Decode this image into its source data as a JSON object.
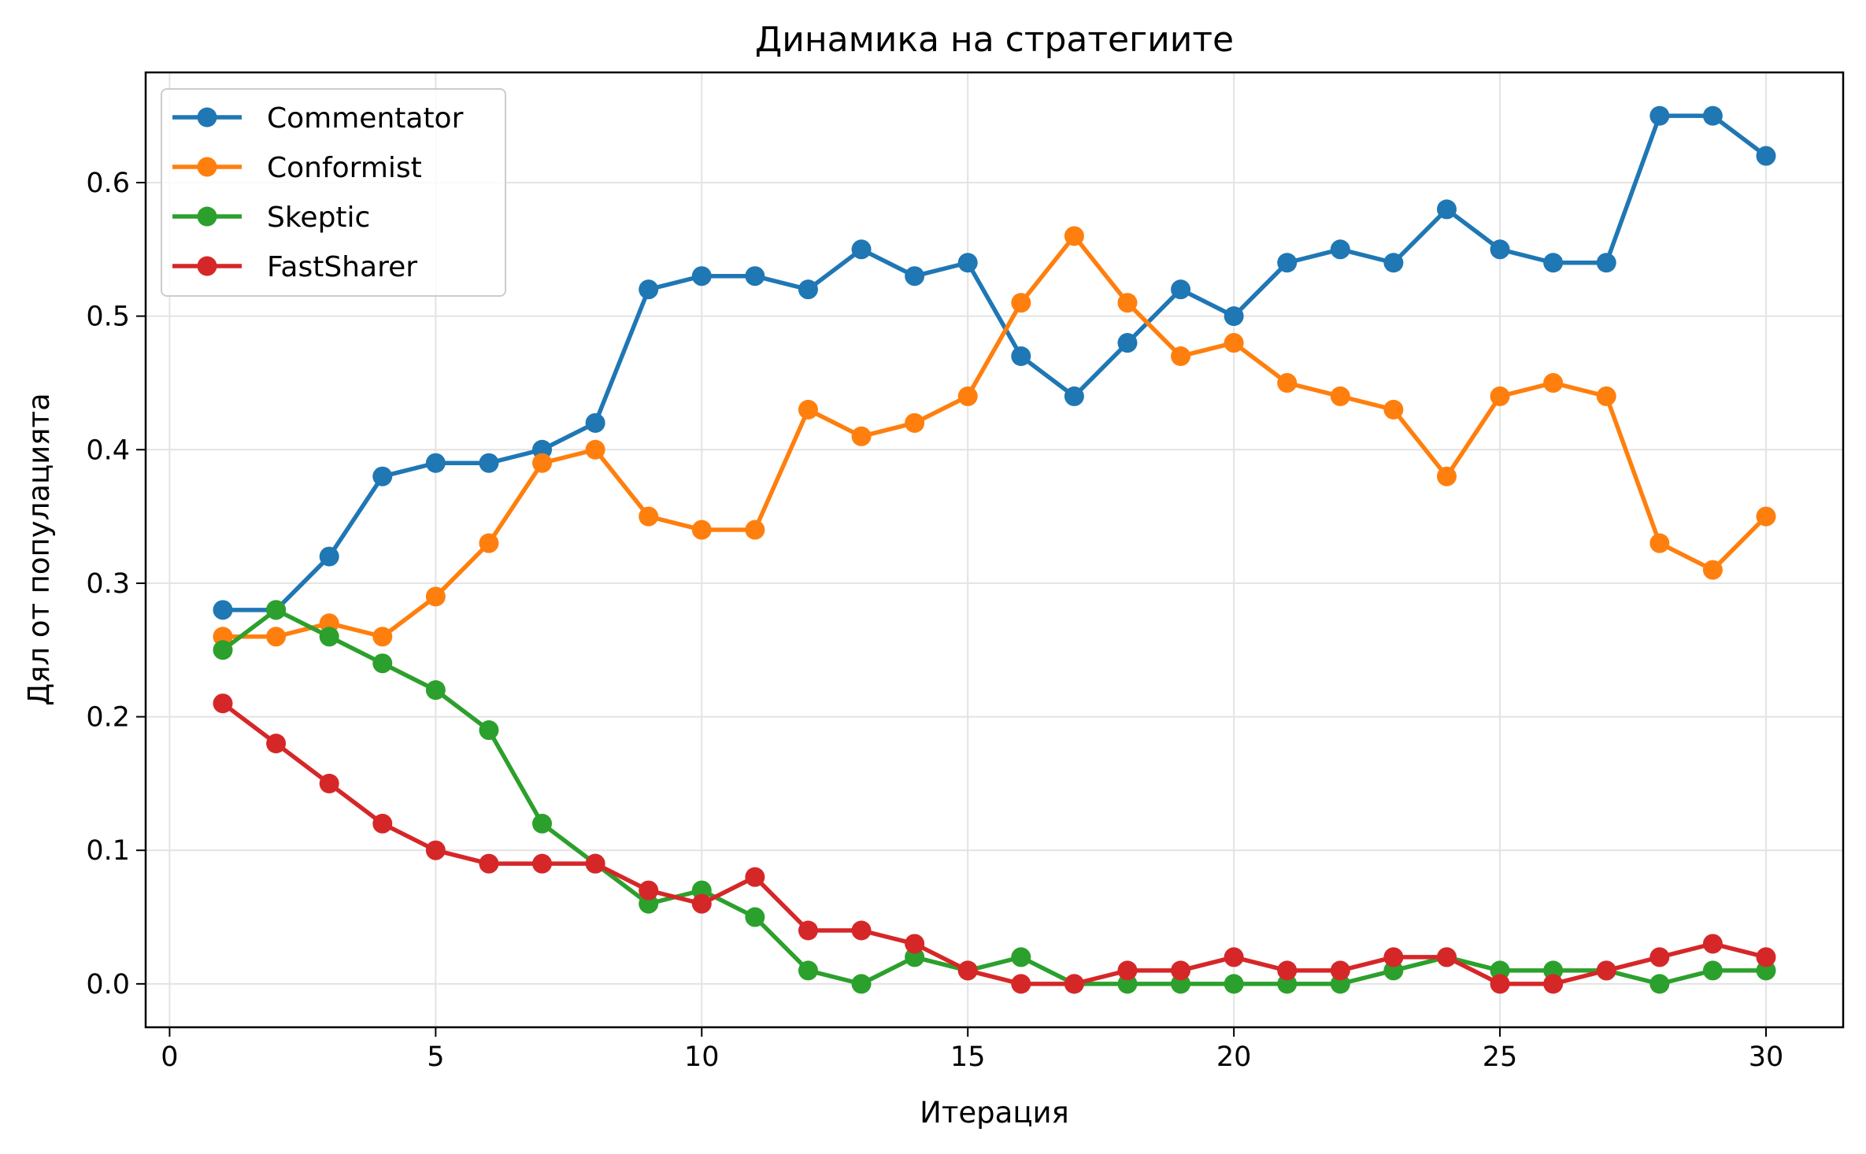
{
  "chart_data": {
    "type": "line",
    "title": "Динамика на стратегиите",
    "xlabel": "Итерация",
    "ylabel": "Дял от популацията",
    "xlim": [
      -0.45,
      31.45
    ],
    "ylim": [
      -0.0325,
      0.6825
    ],
    "x_ticks": [
      0,
      5,
      10,
      15,
      20,
      25,
      30
    ],
    "x_tick_labels": [
      "0",
      "5",
      "10",
      "15",
      "20",
      "25",
      "30"
    ],
    "y_ticks": [
      0.0,
      0.1,
      0.2,
      0.3,
      0.4,
      0.5,
      0.6
    ],
    "y_tick_labels": [
      "0.0",
      "0.1",
      "0.2",
      "0.3",
      "0.4",
      "0.5",
      "0.6"
    ],
    "grid": true,
    "legend_position": "top-left",
    "x": [
      1,
      2,
      3,
      4,
      5,
      6,
      7,
      8,
      9,
      10,
      11,
      12,
      13,
      14,
      15,
      16,
      17,
      18,
      19,
      20,
      21,
      22,
      23,
      24,
      25,
      26,
      27,
      28,
      29,
      30
    ],
    "series": [
      {
        "name": "Commentator",
        "color": "#1f77b4",
        "values": [
          0.28,
          0.28,
          0.32,
          0.38,
          0.39,
          0.39,
          0.4,
          0.42,
          0.52,
          0.53,
          0.53,
          0.52,
          0.55,
          0.53,
          0.54,
          0.47,
          0.44,
          0.48,
          0.52,
          0.5,
          0.54,
          0.55,
          0.54,
          0.58,
          0.55,
          0.54,
          0.54,
          0.65,
          0.65,
          0.62
        ]
      },
      {
        "name": "Conformist",
        "color": "#ff7f0e",
        "values": [
          0.26,
          0.26,
          0.27,
          0.26,
          0.29,
          0.33,
          0.39,
          0.4,
          0.35,
          0.34,
          0.34,
          0.43,
          0.41,
          0.42,
          0.44,
          0.51,
          0.56,
          0.51,
          0.47,
          0.48,
          0.45,
          0.44,
          0.43,
          0.38,
          0.44,
          0.45,
          0.44,
          0.33,
          0.31,
          0.35
        ]
      },
      {
        "name": "Skeptic",
        "color": "#2ca02c",
        "values": [
          0.25,
          0.28,
          0.26,
          0.24,
          0.22,
          0.19,
          0.12,
          0.09,
          0.06,
          0.07,
          0.05,
          0.01,
          0.0,
          0.02,
          0.01,
          0.02,
          0.0,
          0.0,
          0.0,
          0.0,
          0.0,
          0.0,
          0.01,
          0.02,
          0.01,
          0.01,
          0.01,
          0.0,
          0.01,
          0.01
        ]
      },
      {
        "name": "FastSharer",
        "color": "#d62728",
        "values": [
          0.21,
          0.18,
          0.15,
          0.12,
          0.1,
          0.09,
          0.09,
          0.09,
          0.07,
          0.06,
          0.08,
          0.04,
          0.04,
          0.03,
          0.01,
          0.0,
          0.0,
          0.01,
          0.01,
          0.02,
          0.01,
          0.01,
          0.02,
          0.02,
          0.0,
          0.0,
          0.01,
          0.02,
          0.03,
          0.02
        ]
      }
    ]
  }
}
